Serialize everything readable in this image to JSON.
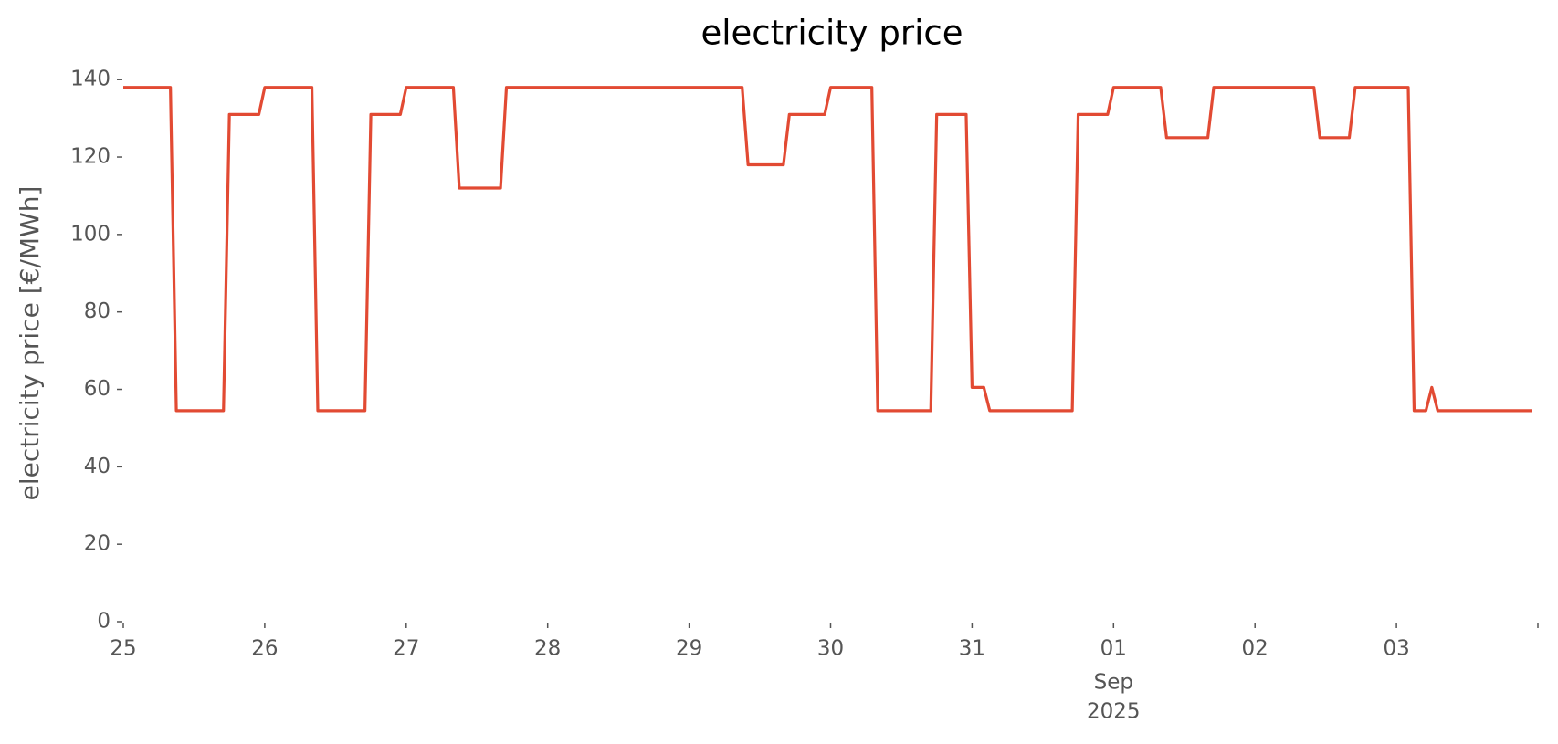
{
  "chart_data": {
    "type": "line",
    "title": "electricity price",
    "ylabel": "electricity price [€/MWh]",
    "x": [
      0,
      8,
      9,
      17,
      18,
      23,
      24,
      32,
      33,
      41,
      42,
      47,
      48,
      56,
      57,
      64,
      65,
      105,
      106,
      112,
      113,
      119,
      120,
      127,
      128,
      137,
      138,
      143,
      144,
      146,
      147,
      161,
      162,
      167,
      168,
      176,
      177,
      184,
      185,
      202,
      203,
      208,
      209,
      218,
      219,
      221,
      222,
      223,
      239
    ],
    "series": [
      {
        "color": "#e24a33",
        "values": [
          138,
          138,
          54.5,
          54.5,
          131,
          131,
          138,
          138,
          54.5,
          54.5,
          131,
          131,
          138,
          138,
          112,
          112,
          138,
          138,
          118,
          118,
          131,
          131,
          138,
          138,
          54.5,
          54.5,
          131,
          131,
          60.5,
          60.5,
          54.5,
          54.5,
          131,
          131,
          138,
          138,
          125,
          125,
          138,
          138,
          125,
          125,
          138,
          138,
          54.5,
          54.5,
          60.5,
          54.5,
          54.5
        ]
      }
    ],
    "xlim": [
      0,
      240
    ],
    "xticks": [
      {
        "value": 0,
        "label": "25"
      },
      {
        "value": 24,
        "label": "26"
      },
      {
        "value": 48,
        "label": "27"
      },
      {
        "value": 72,
        "label": "28"
      },
      {
        "value": 96,
        "label": "29"
      },
      {
        "value": 120,
        "label": "30"
      },
      {
        "value": 144,
        "label": "31"
      },
      {
        "value": 168,
        "label": "01"
      },
      {
        "value": 192,
        "label": "02"
      },
      {
        "value": 216,
        "label": "03"
      },
      {
        "value": 240,
        "label": null
      }
    ],
    "x_offset_labels": [
      "Sep",
      "2025"
    ],
    "ylim": [
      0,
      145
    ],
    "yticks": [
      0,
      20,
      40,
      60,
      80,
      100,
      120,
      140
    ],
    "grid": false
  }
}
